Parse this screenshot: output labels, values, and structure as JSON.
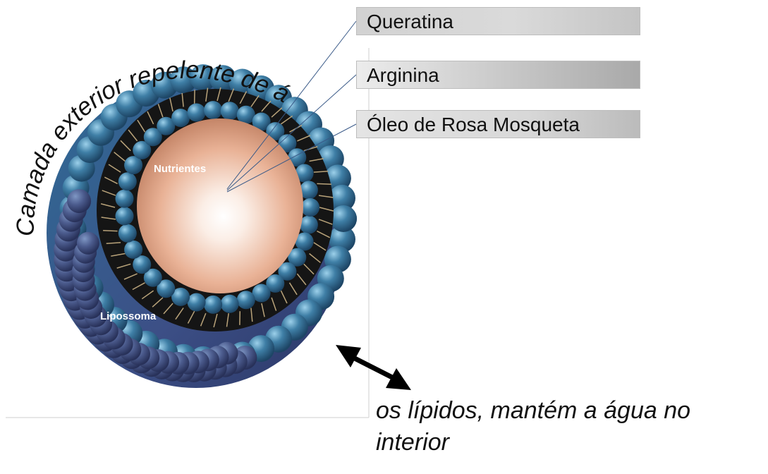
{
  "labels": {
    "keratin": "Queratina",
    "arginine": "Arginina",
    "rosehip_oil": "Óleo de Rosa Mosqueta"
  },
  "curved_text": "Camada exterior repelente de água,",
  "core_label": "Nutrientes",
  "shell_label": "Lipossoma",
  "bottom_text_line1": "os lípidos, mantém a água no",
  "bottom_text_line2": "interior",
  "colors": {
    "bead_blue": "#3f7fa6",
    "core": "#e9b296",
    "label_gray": "#cfcfcf"
  }
}
